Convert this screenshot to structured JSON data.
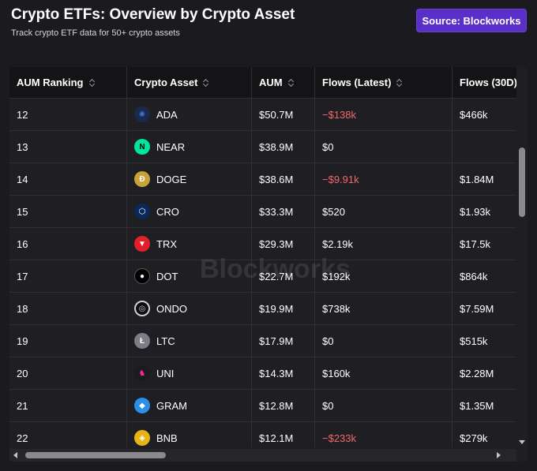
{
  "header": {
    "title": "Crypto ETFs: Overview by Crypto Asset",
    "subtitle": "Track crypto ETF data for 50+ crypto assets",
    "source_button": "Source: Blockworks"
  },
  "table": {
    "columns": [
      "AUM Ranking",
      "Crypto Asset",
      "AUM",
      "Flows (Latest)",
      "Flows (30D)"
    ],
    "rows": [
      {
        "rank": "12",
        "asset": "ADA",
        "icon": "cardano-icon",
        "icon_bg": "#1a2a4a",
        "icon_fg": "#3b6fd6",
        "aum": "$50.7M",
        "flows_latest": "−$138k",
        "latest_negative": true,
        "flows_30d": "$466k"
      },
      {
        "rank": "13",
        "asset": "NEAR",
        "icon": "near-icon",
        "icon_bg": "#00e599",
        "icon_fg": "#000000",
        "aum": "$38.9M",
        "flows_latest": "$0",
        "latest_negative": false,
        "flows_30d": ""
      },
      {
        "rank": "14",
        "asset": "DOGE",
        "icon": "dogecoin-icon",
        "icon_bg": "#c9a23a",
        "icon_fg": "#ffffff",
        "aum": "$38.6M",
        "flows_latest": "−$9.91k",
        "latest_negative": true,
        "flows_30d": "$1.84M"
      },
      {
        "rank": "15",
        "asset": "CRO",
        "icon": "cronos-icon",
        "icon_bg": "#0b2a5a",
        "icon_fg": "#ffffff",
        "aum": "$33.3M",
        "flows_latest": "$520",
        "latest_negative": false,
        "flows_30d": "$1.93k"
      },
      {
        "rank": "16",
        "asset": "TRX",
        "icon": "tron-icon",
        "icon_bg": "#e0202b",
        "icon_fg": "#ffffff",
        "aum": "$29.3M",
        "flows_latest": "$2.19k",
        "latest_negative": false,
        "flows_30d": "$17.5k"
      },
      {
        "rank": "17",
        "asset": "DOT",
        "icon": "polkadot-icon",
        "icon_bg": "#000000",
        "icon_fg": "#ffffff",
        "aum": "$22.7M",
        "flows_latest": "$192k",
        "latest_negative": false,
        "flows_30d": "$864k"
      },
      {
        "rank": "18",
        "asset": "ONDO",
        "icon": "ondo-icon",
        "icon_bg": "#0d0d10",
        "icon_fg": "#cfcfd4",
        "aum": "$19.9M",
        "flows_latest": "$738k",
        "latest_negative": false,
        "flows_30d": "$7.59M"
      },
      {
        "rank": "19",
        "asset": "LTC",
        "icon": "litecoin-icon",
        "icon_bg": "#7d7d85",
        "icon_fg": "#ffffff",
        "aum": "$17.9M",
        "flows_latest": "$0",
        "latest_negative": false,
        "flows_30d": "$515k"
      },
      {
        "rank": "20",
        "asset": "UNI",
        "icon": "uniswap-icon",
        "icon_bg": "#1b1b1f",
        "icon_fg": "#ff2a9e",
        "aum": "$14.3M",
        "flows_latest": "$160k",
        "latest_negative": false,
        "flows_30d": "$2.28M"
      },
      {
        "rank": "21",
        "asset": "GRAM",
        "icon": "gram-icon",
        "icon_bg": "#2a8fe6",
        "icon_fg": "#ffffff",
        "aum": "$12.8M",
        "flows_latest": "$0",
        "latest_negative": false,
        "flows_30d": "$1.35M"
      },
      {
        "rank": "22",
        "asset": "BNB",
        "icon": "bnb-icon",
        "icon_bg": "#e8b413",
        "icon_fg": "#ffffff",
        "aum": "$12.1M",
        "flows_latest": "−$233k",
        "latest_negative": true,
        "flows_30d": "$279k"
      }
    ]
  },
  "watermark": "Blockworks",
  "colors": {
    "background": "#1b1b1f",
    "accent": "#5a2fc8",
    "negative": "#f06a6a"
  }
}
